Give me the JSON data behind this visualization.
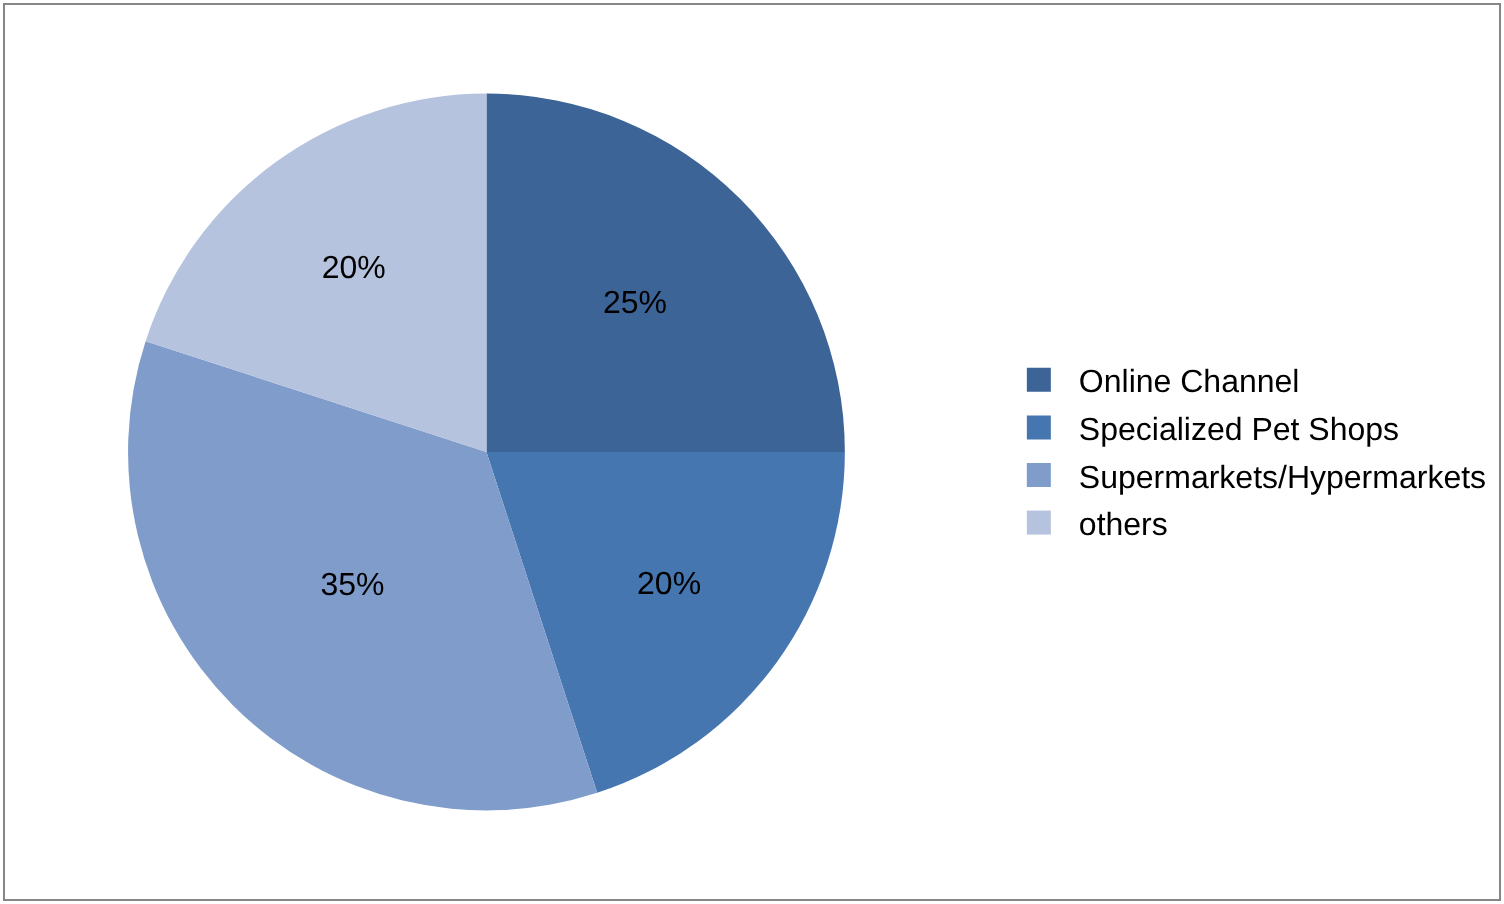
{
  "chart_data": {
    "type": "pie",
    "categories": [
      "Online Channel",
      "Specialized Pet Shops",
      "Supermarkets/Hypermarkets",
      "others"
    ],
    "values": [
      25,
      20,
      35,
      20
    ],
    "value_labels": [
      "25%",
      "20%",
      "35%",
      "20%"
    ],
    "colors": [
      "#3d6496",
      "#4676b0",
      "#7f9cca",
      "#b5c3de"
    ],
    "legend": "right"
  }
}
